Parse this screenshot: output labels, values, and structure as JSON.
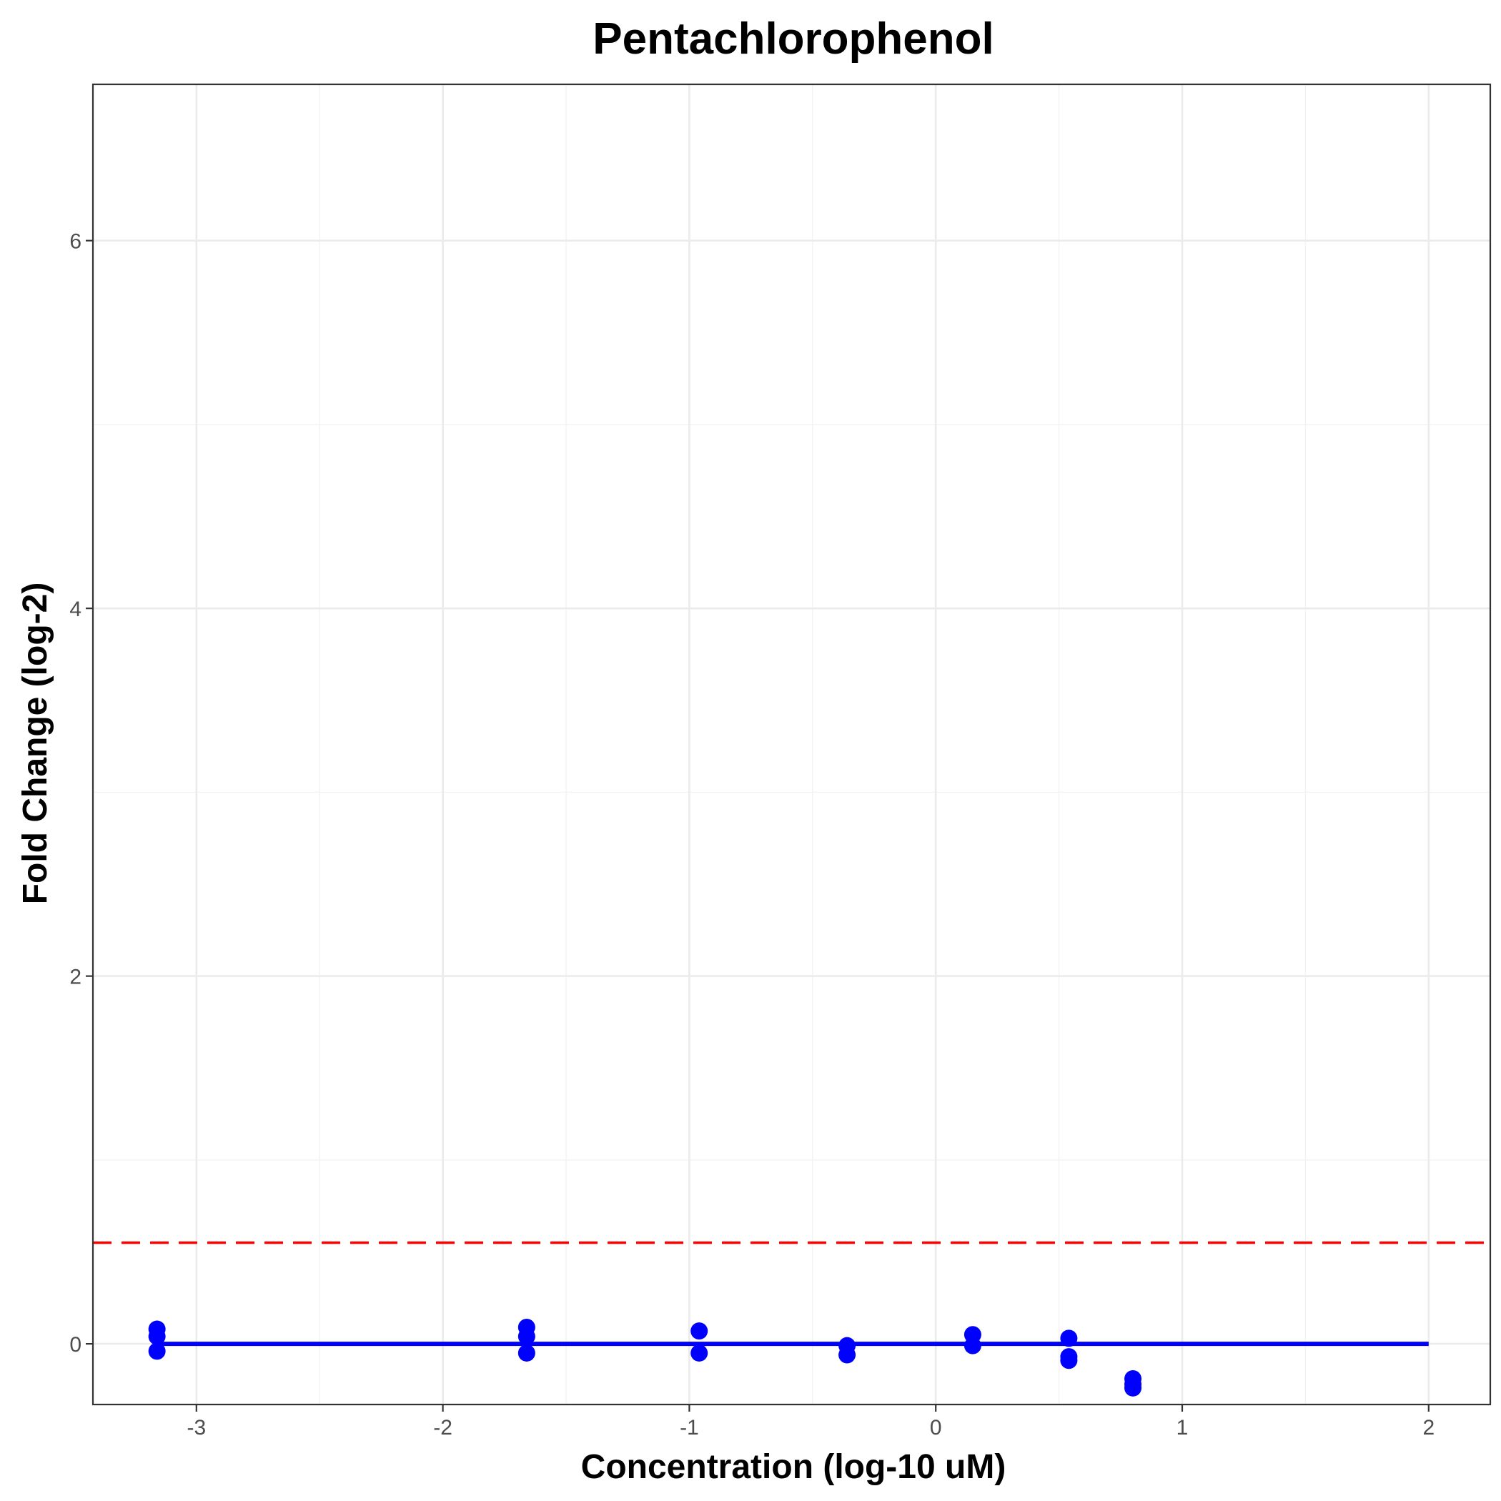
{
  "chart_data": {
    "type": "scatter",
    "title": "Pentachlorophenol",
    "xlabel": "Concentration (log-10 uM)",
    "ylabel": "Fold Change (log-2)",
    "xlim": [
      -3.42,
      2.25
    ],
    "ylim": [
      -0.33,
      6.85
    ],
    "x_ticks": [
      -3,
      -2,
      -1,
      0,
      1,
      2
    ],
    "y_ticks": [
      0,
      2,
      4,
      6
    ],
    "x_tick_labels": [
      "-3",
      "-2",
      "-1",
      "0",
      "1",
      "2"
    ],
    "y_tick_labels": [
      "0",
      "2",
      "4",
      "6"
    ],
    "grid": true,
    "legend": "none",
    "colors": {
      "points": "#0000ff",
      "fit": "#0000ff",
      "threshold": "#ff0000"
    },
    "threshold_y": 0.55,
    "fit_line": {
      "x": [
        -3.16,
        2.0
      ],
      "y": [
        0.0,
        0.0
      ]
    },
    "points": [
      {
        "x": -3.16,
        "y": 0.08
      },
      {
        "x": -3.16,
        "y": 0.04
      },
      {
        "x": -3.16,
        "y": -0.04
      },
      {
        "x": -1.66,
        "y": 0.09
      },
      {
        "x": -1.66,
        "y": 0.04
      },
      {
        "x": -1.66,
        "y": -0.05
      },
      {
        "x": -0.96,
        "y": 0.07
      },
      {
        "x": -0.96,
        "y": -0.05
      },
      {
        "x": -0.36,
        "y": -0.01
      },
      {
        "x": -0.36,
        "y": -0.06
      },
      {
        "x": 0.15,
        "y": 0.05
      },
      {
        "x": 0.15,
        "y": -0.01
      },
      {
        "x": 0.54,
        "y": 0.03
      },
      {
        "x": 0.54,
        "y": -0.07
      },
      {
        "x": 0.54,
        "y": -0.09
      },
      {
        "x": 0.8,
        "y": -0.19
      },
      {
        "x": 0.8,
        "y": -0.22
      },
      {
        "x": 0.8,
        "y": -0.24
      }
    ]
  }
}
